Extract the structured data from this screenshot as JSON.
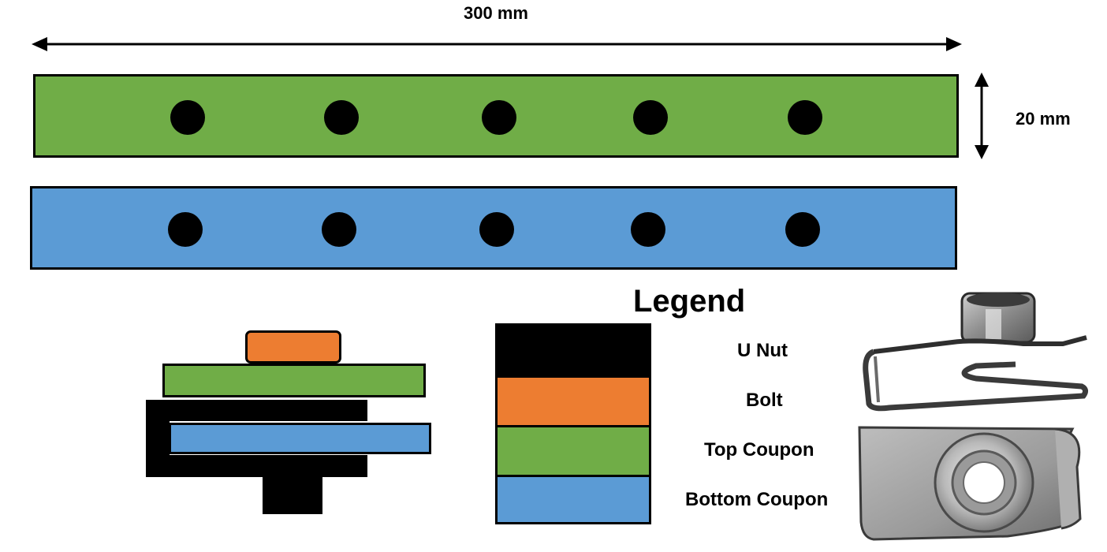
{
  "dimensions": {
    "length_label": "300 mm",
    "width_label": "20 mm"
  },
  "colors": {
    "top_coupon": "#70ad47",
    "bottom_coupon": "#5b9bd5",
    "bolt": "#ed7d31",
    "u_nut": "#000000",
    "hole": "#000000"
  },
  "legend": {
    "title": "Legend",
    "items": [
      {
        "label": "U Nut",
        "color": "#000000"
      },
      {
        "label": "Bolt",
        "color": "#ed7d31"
      },
      {
        "label": "Top Coupon",
        "color": "#70ad47"
      },
      {
        "label": "Bottom Coupon",
        "color": "#5b9bd5"
      }
    ]
  },
  "photo": {
    "subject": "u-nut-photo"
  }
}
